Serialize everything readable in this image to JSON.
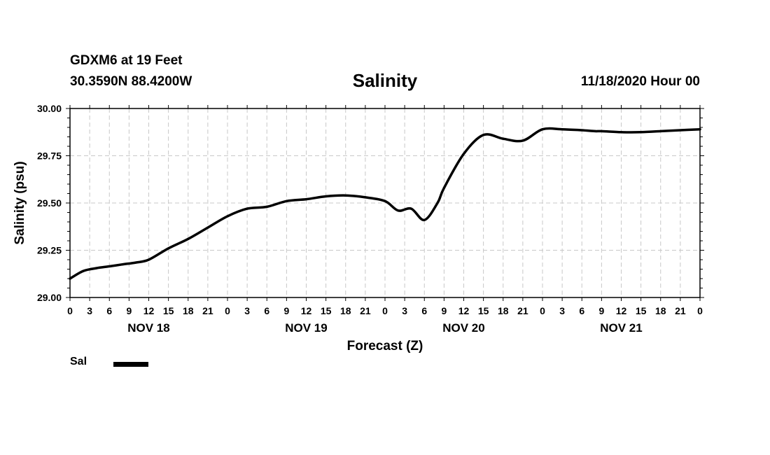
{
  "header": {
    "station": "GDXM6 at 19 Feet",
    "coords": "30.3590N 88.4200W",
    "title": "Salinity",
    "datetime": "11/18/2020 Hour 00"
  },
  "legend": {
    "label": "Sal",
    "color": "#000000"
  },
  "chart_data": {
    "type": "line",
    "title": "Salinity",
    "xlabel": "Forecast (Z)",
    "ylabel": "Salinity (psu)",
    "ylim": [
      29.0,
      30.0
    ],
    "xlim": [
      0,
      96
    ],
    "yticks": [
      "29.00",
      "29.25",
      "29.50",
      "29.75",
      "30.00"
    ],
    "xtick_labels": [
      "0",
      "3",
      "6",
      "9",
      "12",
      "15",
      "18",
      "21",
      "0",
      "3",
      "6",
      "9",
      "12",
      "15",
      "18",
      "21",
      "0",
      "3",
      "6",
      "9",
      "12",
      "15",
      "18",
      "21",
      "0",
      "3",
      "6",
      "9",
      "12",
      "15",
      "18",
      "21",
      "0"
    ],
    "day_labels": [
      "NOV 18",
      "NOV 19",
      "NOV 20",
      "NOV 21"
    ],
    "grid": true,
    "series": [
      {
        "name": "Sal",
        "x": [
          0,
          2,
          4,
          6,
          8,
          10,
          12,
          15,
          18,
          21,
          24,
          27,
          30,
          33,
          36,
          39,
          42,
          45,
          48,
          50,
          52,
          54,
          56,
          57,
          60,
          63,
          66,
          69,
          72,
          75,
          78,
          80,
          81,
          84,
          87,
          90,
          93,
          96
        ],
        "values": [
          29.1,
          29.14,
          29.155,
          29.165,
          29.175,
          29.185,
          29.2,
          29.26,
          29.31,
          29.37,
          29.43,
          29.47,
          29.48,
          29.51,
          29.52,
          29.535,
          29.54,
          29.53,
          29.51,
          29.46,
          29.47,
          29.41,
          29.5,
          29.58,
          29.76,
          29.86,
          29.84,
          29.83,
          29.89,
          29.89,
          29.885,
          29.88,
          29.88,
          29.875,
          29.875,
          29.88,
          29.885,
          29.89
        ]
      }
    ]
  }
}
